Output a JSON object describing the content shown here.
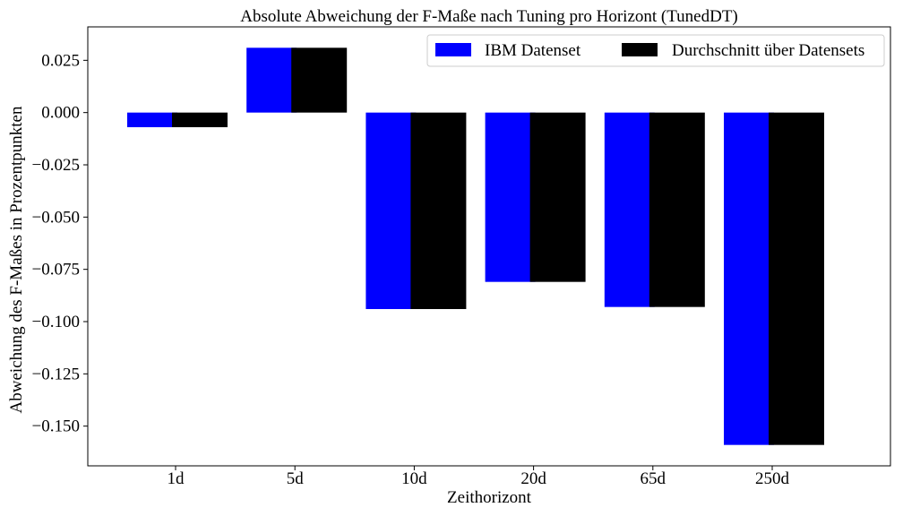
{
  "chart_data": {
    "type": "bar",
    "title": "Absolute Abweichung der F-Maße nach Tuning pro Horizont (TunedDT)",
    "xlabel": "Zeithorizont",
    "ylabel": "Abweichung des F-Maßes in Prozentpunkten",
    "categories": [
      "1d",
      "5d",
      "10d",
      "20d",
      "65d",
      "250d"
    ],
    "series": [
      {
        "name": "IBM Datenset",
        "color": "#0000ff",
        "values": [
          -0.007,
          0.031,
          -0.094,
          -0.081,
          -0.093,
          -0.159
        ]
      },
      {
        "name": "Durchschnitt über Datensets",
        "color": "#000000",
        "values": [
          -0.007,
          0.031,
          -0.094,
          -0.081,
          -0.093,
          -0.159
        ]
      }
    ],
    "ylim": [
      -0.169,
      0.041
    ],
    "yticks": [
      0.025,
      0.0,
      -0.025,
      -0.05,
      -0.075,
      -0.1,
      -0.125,
      -0.15
    ],
    "ytick_labels": [
      "0.025",
      "0.000",
      "−0.025",
      "−0.050",
      "−0.075",
      "−0.100",
      "−0.125",
      "−0.150"
    ],
    "grid": false,
    "legend": "top-right"
  }
}
